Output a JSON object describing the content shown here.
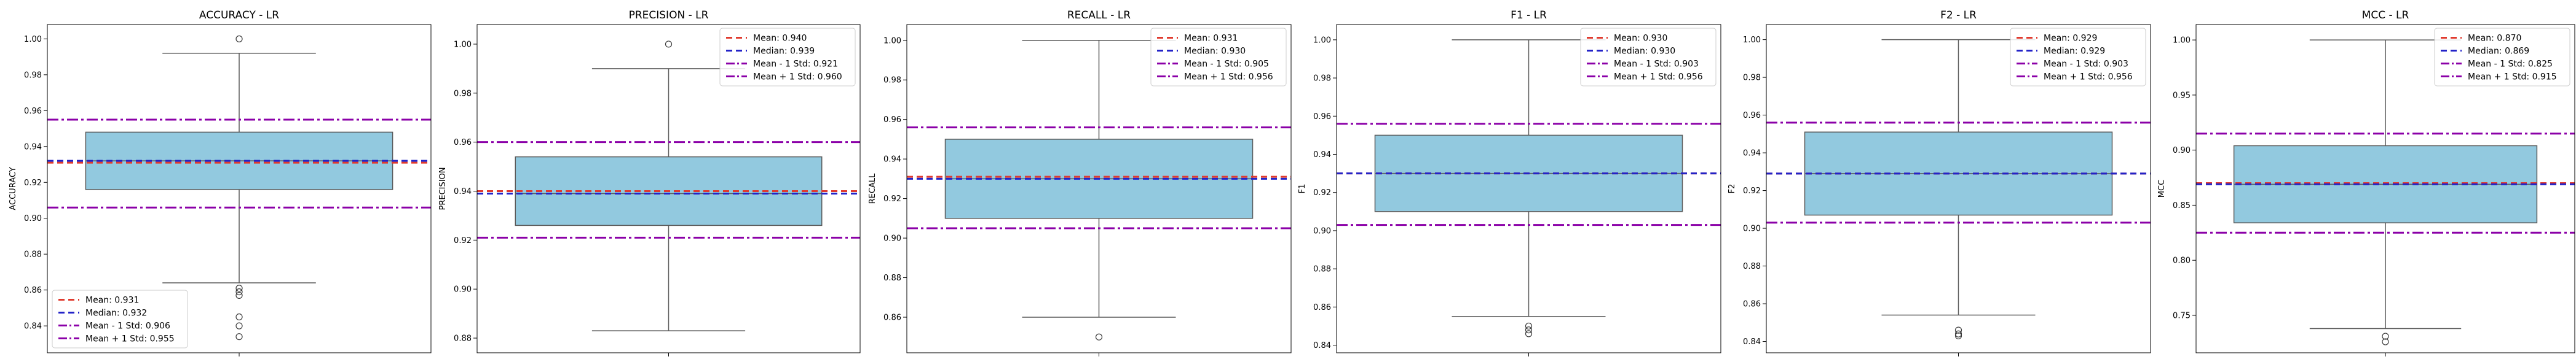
{
  "chart_data": [
    {
      "type": "box",
      "title": "ACCURACY - LR",
      "ylabel": "ACCURACY",
      "ylim": [
        0.825,
        1.008
      ],
      "yticks": [
        0.84,
        0.86,
        0.88,
        0.9,
        0.92,
        0.94,
        0.96,
        0.98,
        1.0
      ],
      "box": {
        "q1": 0.916,
        "median": 0.932,
        "q3": 0.948,
        "whisker_low": 0.864,
        "whisker_high": 0.992
      },
      "outliers": [
        1.0,
        0.861,
        0.859,
        0.857,
        0.845,
        0.84,
        0.834
      ],
      "lines": {
        "mean": 0.931,
        "median": 0.932,
        "minus_std": 0.906,
        "plus_std": 0.955
      },
      "legend": {
        "position": "lower-left",
        "entries": [
          "Mean: 0.931",
          "Median: 0.932",
          "Mean - 1 Std: 0.906",
          "Mean + 1 Std: 0.955"
        ]
      }
    },
    {
      "type": "box",
      "title": "PRECISION - LR",
      "ylabel": "PRECISION",
      "ylim": [
        0.874,
        1.008
      ],
      "yticks": [
        0.88,
        0.9,
        0.92,
        0.94,
        0.96,
        0.98,
        1.0
      ],
      "box": {
        "q1": 0.926,
        "median": 0.939,
        "q3": 0.954,
        "whisker_low": 0.883,
        "whisker_high": 0.99
      },
      "outliers": [
        1.0
      ],
      "lines": {
        "mean": 0.94,
        "median": 0.939,
        "minus_std": 0.921,
        "plus_std": 0.96
      },
      "legend": {
        "position": "upper-right",
        "entries": [
          "Mean: 0.940",
          "Median: 0.939",
          "Mean - 1 Std: 0.921",
          "Mean + 1 Std: 0.960"
        ]
      }
    },
    {
      "type": "box",
      "title": "RECALL - LR",
      "ylabel": "RECALL",
      "ylim": [
        0.842,
        1.008
      ],
      "yticks": [
        0.86,
        0.88,
        0.9,
        0.92,
        0.94,
        0.96,
        0.98,
        1.0
      ],
      "box": {
        "q1": 0.91,
        "median": 0.93,
        "q3": 0.95,
        "whisker_low": 0.86,
        "whisker_high": 1.0
      },
      "outliers": [
        0.85
      ],
      "lines": {
        "mean": 0.931,
        "median": 0.93,
        "minus_std": 0.905,
        "plus_std": 0.956
      },
      "legend": {
        "position": "upper-right",
        "entries": [
          "Mean: 0.931",
          "Median: 0.930",
          "Mean - 1 Std: 0.905",
          "Mean + 1 Std: 0.956"
        ]
      }
    },
    {
      "type": "box",
      "title": "F1 - LR",
      "ylabel": "F1",
      "ylim": [
        0.836,
        1.008
      ],
      "yticks": [
        0.84,
        0.86,
        0.88,
        0.9,
        0.92,
        0.94,
        0.96,
        0.98,
        1.0
      ],
      "box": {
        "q1": 0.91,
        "median": 0.93,
        "q3": 0.95,
        "whisker_low": 0.855,
        "whisker_high": 1.0
      },
      "outliers": [
        0.85,
        0.848,
        0.846
      ],
      "lines": {
        "mean": 0.93,
        "median": 0.93,
        "minus_std": 0.903,
        "plus_std": 0.956
      },
      "legend": {
        "position": "upper-right",
        "entries": [
          "Mean: 0.930",
          "Median: 0.930",
          "Mean - 1 Std: 0.903",
          "Mean + 1 Std: 0.956"
        ]
      }
    },
    {
      "type": "box",
      "title": "F2 - LR",
      "ylabel": "F2",
      "ylim": [
        0.834,
        1.008
      ],
      "yticks": [
        0.84,
        0.86,
        0.88,
        0.9,
        0.92,
        0.94,
        0.96,
        0.98,
        1.0
      ],
      "box": {
        "q1": 0.907,
        "median": 0.929,
        "q3": 0.951,
        "whisker_low": 0.854,
        "whisker_high": 1.0
      },
      "outliers": [
        0.846,
        0.844,
        0.843
      ],
      "lines": {
        "mean": 0.929,
        "median": 0.929,
        "minus_std": 0.903,
        "plus_std": 0.956
      },
      "legend": {
        "position": "upper-right",
        "entries": [
          "Mean: 0.929",
          "Median: 0.929",
          "Mean - 1 Std: 0.903",
          "Mean + 1 Std: 0.956"
        ]
      }
    },
    {
      "type": "box",
      "title": "MCC - LR",
      "ylabel": "MCC",
      "ylim": [
        0.716,
        1.014
      ],
      "yticks": [
        0.75,
        0.8,
        0.85,
        0.9,
        0.95,
        1.0
      ],
      "box": {
        "q1": 0.834,
        "median": 0.869,
        "q3": 0.904,
        "whisker_low": 0.738,
        "whisker_high": 1.0
      },
      "outliers": [
        0.731,
        0.726
      ],
      "lines": {
        "mean": 0.87,
        "median": 0.869,
        "minus_std": 0.825,
        "plus_std": 0.915
      },
      "legend": {
        "position": "upper-right",
        "entries": [
          "Mean: 0.870",
          "Median: 0.869",
          "Mean - 1 Std: 0.825",
          "Mean + 1 Std: 0.915"
        ]
      }
    }
  ],
  "colors": {
    "box_fill": "#92c9df",
    "box_edge": "#5a5a5a",
    "mean": "#e03a2e",
    "median": "#2323c8",
    "std": "#8b00a8"
  }
}
